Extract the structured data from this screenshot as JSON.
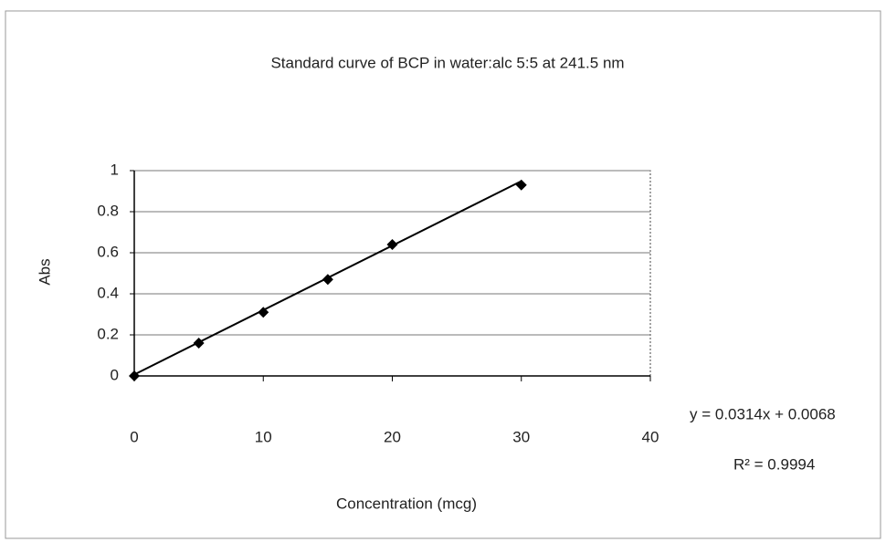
{
  "chart_data": {
    "type": "scatter",
    "title": "Standard curve of BCP in  water:alc  5:5  at  241.5 nm",
    "x_label": "Concentration (mcg)",
    "y_label": "Abs",
    "x": [
      0,
      5,
      10,
      15,
      20,
      30
    ],
    "values": [
      0,
      0.16,
      0.31,
      0.47,
      0.64,
      0.93
    ],
    "color": "#000000",
    "xlim": [
      0,
      40
    ],
    "xticks": [
      0,
      10,
      20,
      30,
      40
    ],
    "ylim": [
      0,
      1
    ],
    "yticks": [
      0,
      0.2,
      0.4,
      0.6,
      0.8,
      1
    ],
    "grid": true,
    "trendline": {
      "slope": 0.0314,
      "intercept": 0.0068
    },
    "annotations": [
      "y = 0.0314x + 0.0068",
      "R² = 0.9994"
    ]
  }
}
